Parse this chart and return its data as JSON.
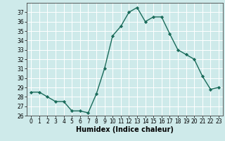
{
  "x": [
    0,
    1,
    2,
    3,
    4,
    5,
    6,
    7,
    8,
    9,
    10,
    11,
    12,
    13,
    14,
    15,
    16,
    17,
    18,
    19,
    20,
    21,
    22,
    23
  ],
  "y": [
    28.5,
    28.5,
    28.0,
    27.5,
    27.5,
    26.5,
    26.5,
    26.3,
    28.3,
    31.0,
    34.5,
    35.5,
    37.0,
    37.5,
    36.0,
    36.5,
    36.5,
    34.7,
    33.0,
    32.5,
    32.0,
    30.2,
    28.8,
    29.0
  ],
  "xlabel": "Humidex (Indice chaleur)",
  "line_color": "#1a6b5a",
  "marker": "D",
  "marker_size": 2.2,
  "line_width": 1.0,
  "bg_color": "#ceeaea",
  "grid_color": "#ffffff",
  "ylim": [
    26,
    38
  ],
  "xlim": [
    -0.5,
    23.5
  ],
  "yticks": [
    26,
    27,
    28,
    29,
    30,
    31,
    32,
    33,
    34,
    35,
    36,
    37
  ],
  "xticks": [
    0,
    1,
    2,
    3,
    4,
    5,
    6,
    7,
    8,
    9,
    10,
    11,
    12,
    13,
    14,
    15,
    16,
    17,
    18,
    19,
    20,
    21,
    22,
    23
  ],
  "tick_fontsize": 5.5,
  "xlabel_fontsize": 7.0,
  "tick_color": "#000000"
}
